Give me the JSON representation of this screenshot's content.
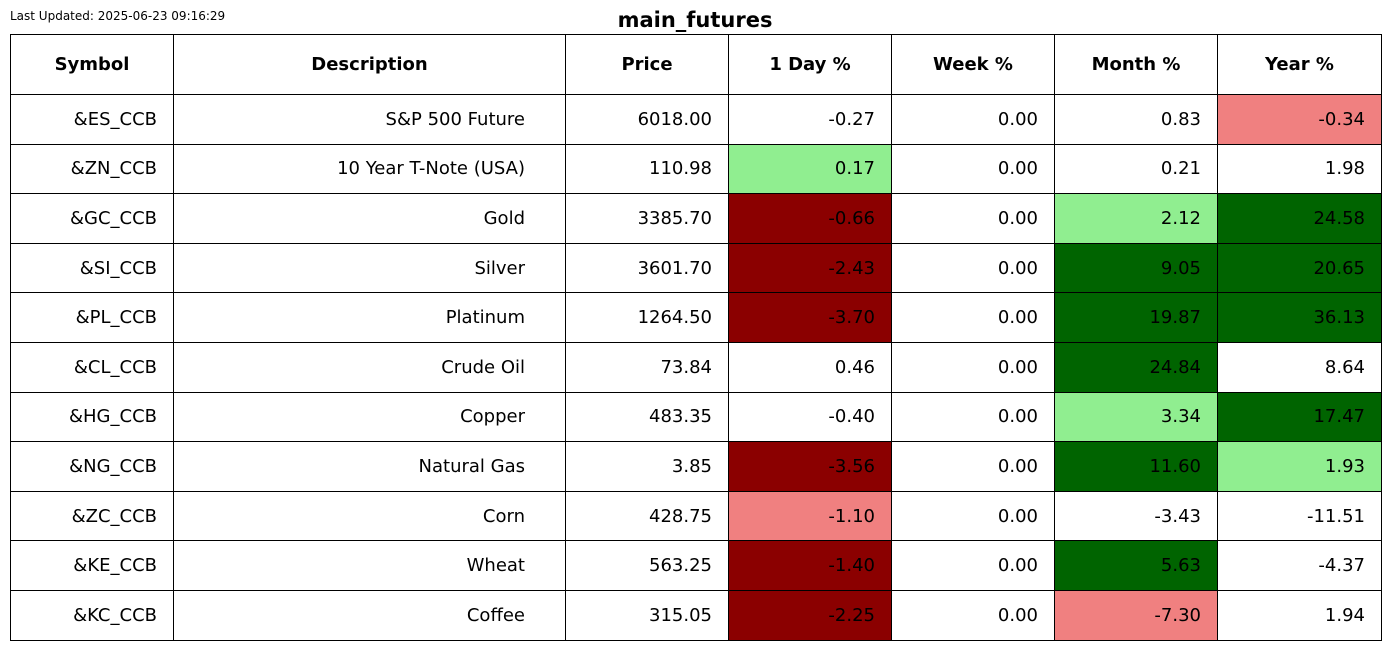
{
  "last_updated": "Last Updated: 2025-06-23 09:16:29",
  "title": "main_futures",
  "colors": {
    "dark_red": "#8b0000",
    "light_red": "#f08080",
    "light_green": "#90ee90",
    "dark_green": "#006400",
    "neutral": "#ffffff"
  },
  "chart_data": {
    "type": "table",
    "title": "main_futures",
    "columns": [
      "Symbol",
      "Description",
      "Price",
      "1 Day %",
      "Week %",
      "Month %",
      "Year %"
    ],
    "rows": [
      {
        "symbol": "&ES_CCB",
        "description": "S&P 500 Future",
        "price": "6018.00",
        "day": "-0.27",
        "week": "0.00",
        "month": "0.83",
        "year": "-0.34",
        "colors": {
          "day": "neutral",
          "week": "neutral",
          "month": "neutral",
          "year": "light_red"
        }
      },
      {
        "symbol": "&ZN_CCB",
        "description": "10 Year T-Note (USA)",
        "price": "110.98",
        "day": "0.17",
        "week": "0.00",
        "month": "0.21",
        "year": "1.98",
        "colors": {
          "day": "light_green",
          "week": "neutral",
          "month": "neutral",
          "year": "neutral"
        }
      },
      {
        "symbol": "&GC_CCB",
        "description": "Gold",
        "price": "3385.70",
        "day": "-0.66",
        "week": "0.00",
        "month": "2.12",
        "year": "24.58",
        "colors": {
          "day": "dark_red",
          "week": "neutral",
          "month": "light_green",
          "year": "dark_green"
        }
      },
      {
        "symbol": "&SI_CCB",
        "description": "Silver",
        "price": "3601.70",
        "day": "-2.43",
        "week": "0.00",
        "month": "9.05",
        "year": "20.65",
        "colors": {
          "day": "dark_red",
          "week": "neutral",
          "month": "dark_green",
          "year": "dark_green"
        }
      },
      {
        "symbol": "&PL_CCB",
        "description": "Platinum",
        "price": "1264.50",
        "day": "-3.70",
        "week": "0.00",
        "month": "19.87",
        "year": "36.13",
        "colors": {
          "day": "dark_red",
          "week": "neutral",
          "month": "dark_green",
          "year": "dark_green"
        }
      },
      {
        "symbol": "&CL_CCB",
        "description": "Crude Oil",
        "price": "73.84",
        "day": "0.46",
        "week": "0.00",
        "month": "24.84",
        "year": "8.64",
        "colors": {
          "day": "neutral",
          "week": "neutral",
          "month": "dark_green",
          "year": "neutral"
        }
      },
      {
        "symbol": "&HG_CCB",
        "description": "Copper",
        "price": "483.35",
        "day": "-0.40",
        "week": "0.00",
        "month": "3.34",
        "year": "17.47",
        "colors": {
          "day": "neutral",
          "week": "neutral",
          "month": "light_green",
          "year": "dark_green"
        }
      },
      {
        "symbol": "&NG_CCB",
        "description": "Natural Gas",
        "price": "3.85",
        "day": "-3.56",
        "week": "0.00",
        "month": "11.60",
        "year": "1.93",
        "colors": {
          "day": "dark_red",
          "week": "neutral",
          "month": "dark_green",
          "year": "light_green"
        }
      },
      {
        "symbol": "&ZC_CCB",
        "description": "Corn",
        "price": "428.75",
        "day": "-1.10",
        "week": "0.00",
        "month": "-3.43",
        "year": "-11.51",
        "colors": {
          "day": "light_red",
          "week": "neutral",
          "month": "neutral",
          "year": "neutral"
        }
      },
      {
        "symbol": "&KE_CCB",
        "description": "Wheat",
        "price": "563.25",
        "day": "-1.40",
        "week": "0.00",
        "month": "5.63",
        "year": "-4.37",
        "colors": {
          "day": "dark_red",
          "week": "neutral",
          "month": "dark_green",
          "year": "neutral"
        }
      },
      {
        "symbol": "&KC_CCB",
        "description": "Coffee",
        "price": "315.05",
        "day": "-2.25",
        "week": "0.00",
        "month": "-7.30",
        "year": "1.94",
        "colors": {
          "day": "dark_red",
          "week": "neutral",
          "month": "light_red",
          "year": "neutral"
        }
      }
    ]
  }
}
